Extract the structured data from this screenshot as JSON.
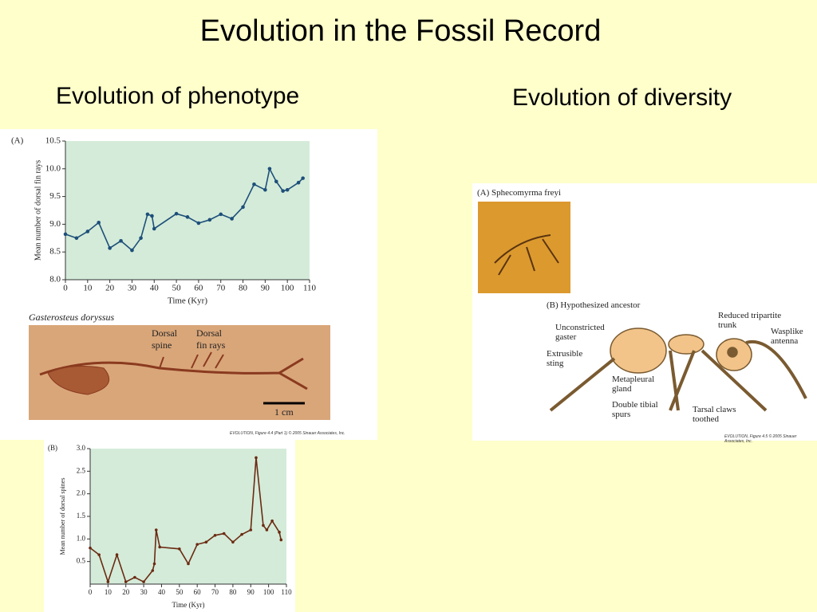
{
  "title": "Evolution in the Fossil Record",
  "headings": {
    "phenotype": "Evolution of phenotype",
    "diversity": "Evolution of diversity"
  },
  "chart_data": [
    {
      "type": "line",
      "panel_label": "(A)",
      "color": "#1d4f7a",
      "x_label": "Time (Kyr)",
      "y_label": "Mean number of dorsal fin rays",
      "x": [
        0,
        5,
        10,
        15,
        20,
        25,
        30,
        34,
        37,
        39,
        40,
        50,
        55,
        60,
        65,
        70,
        75,
        80,
        85,
        90,
        92,
        95,
        98,
        100,
        105,
        107
      ],
      "values": [
        8.82,
        8.75,
        8.87,
        9.03,
        8.57,
        8.7,
        8.53,
        8.75,
        9.18,
        9.15,
        8.92,
        9.19,
        9.13,
        9.02,
        9.08,
        9.18,
        9.1,
        9.31,
        9.72,
        9.62,
        10.0,
        9.77,
        9.6,
        9.62,
        9.75,
        9.83
      ],
      "xlim": [
        0,
        110
      ],
      "xticks": [
        0,
        10,
        20,
        30,
        40,
        50,
        60,
        70,
        80,
        90,
        100,
        110
      ],
      "ylim": [
        8,
        10.5
      ],
      "yticks": [
        {
          "value": 8,
          "label": "8.0"
        },
        8.5,
        {
          "value": 9,
          "label": "9.0"
        },
        9.5,
        {
          "value": 10,
          "label": "10.0"
        },
        10.5
      ],
      "grid": false,
      "background": "#d3ebd8"
    },
    {
      "type": "line",
      "panel_label": "(B)",
      "color": "#6b2a12",
      "x_label": "Time (Kyr)",
      "y_label": "Mean number of dorsal spines",
      "x": [
        0,
        5,
        10,
        15,
        20,
        25,
        30,
        35,
        36,
        37,
        39,
        50,
        55,
        60,
        65,
        70,
        75,
        80,
        85,
        90,
        93,
        97,
        99,
        102,
        106,
        107
      ],
      "values": [
        0.8,
        0.65,
        0.05,
        0.65,
        0.05,
        0.15,
        0.05,
        0.3,
        0.45,
        1.2,
        0.82,
        0.78,
        0.45,
        0.88,
        0.93,
        1.08,
        1.12,
        0.93,
        1.1,
        1.2,
        2.8,
        1.3,
        1.2,
        1.4,
        1.15,
        0.98
      ],
      "xlim": [
        0,
        110
      ],
      "xticks": [
        0,
        10,
        20,
        30,
        40,
        50,
        60,
        70,
        80,
        90,
        100,
        110
      ],
      "ylim": [
        0,
        3
      ],
      "yticks": [
        0.5,
        {
          "value": 1,
          "label": "1.0"
        },
        1.5,
        {
          "value": 2,
          "label": "2.0"
        },
        2.5,
        {
          "value": 3,
          "label": "3.0"
        }
      ],
      "grid": false,
      "background": "#d3ebd8"
    }
  ],
  "fish_figure": {
    "species": "Gasterosteus doryssus",
    "spine_label": "Dorsal spine",
    "rays_label": "Dorsal fin rays",
    "scale": "1 cm",
    "credit": "EVOLUTION, Figure 4.4 (Part 1) © 2005 Sinauer Associates, Inc."
  },
  "ant_figure": {
    "panel_a": "(A) Sphecomyrma freyi",
    "panel_b": "(B) Hypothesized ancestor",
    "labels": [
      "Unconstricted gaster",
      "Extrusible sting",
      "Metapleural gland",
      "Double tibial spurs",
      "Tarsal claws toothed",
      "Reduced tripartite trunk",
      "Wasplike antenna"
    ],
    "credit": "EVOLUTION, Figure 4.5 © 2005 Sinauer Associates, Inc."
  }
}
